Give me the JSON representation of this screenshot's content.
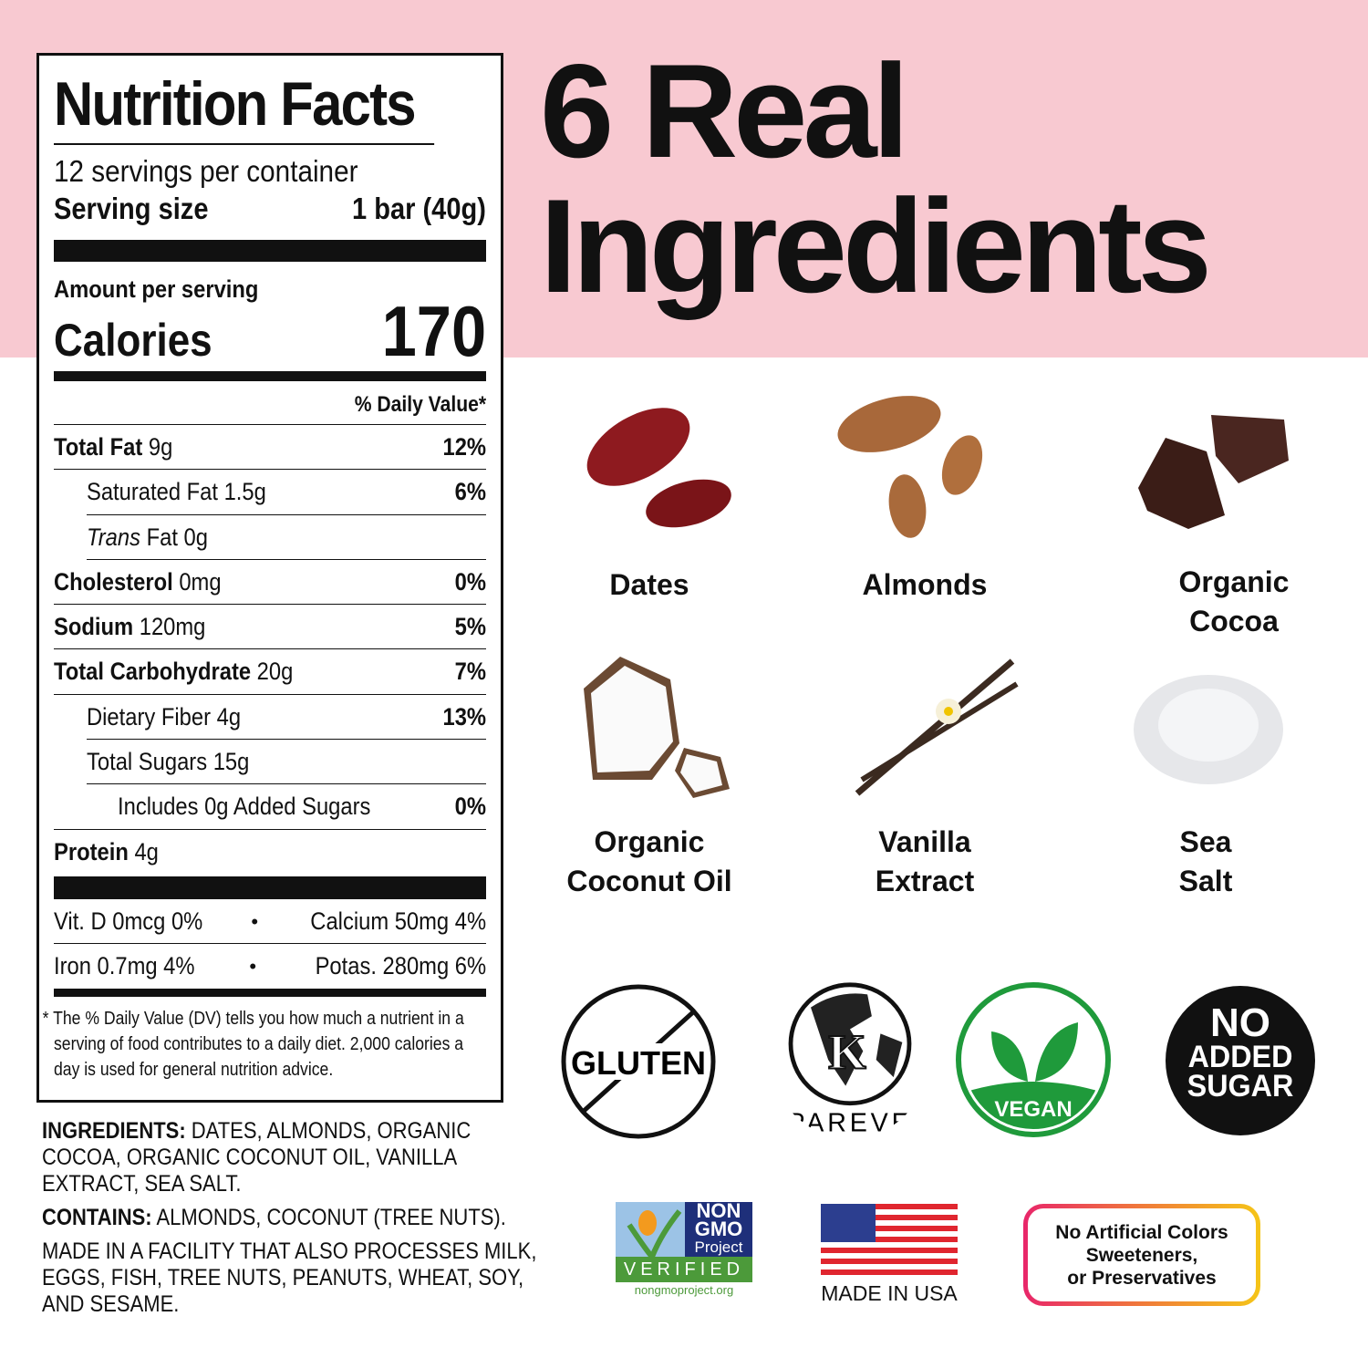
{
  "heading": {
    "line1": "6 Real",
    "line2": "Ingredients"
  },
  "nutrition": {
    "title": "Nutrition Facts",
    "servings": "12 servings per container",
    "serving_size_label": "Serving size",
    "serving_size_value": "1 bar (40g)",
    "amount_per_serving": "Amount per serving",
    "calories_label": "Calories",
    "calories_value": "170",
    "daily_value_header": "% Daily Value*",
    "rows": [
      {
        "name": "Total Fat",
        "amount": "9g",
        "dv": "12%",
        "bold": true,
        "indent": 0
      },
      {
        "name": "Saturated Fat",
        "amount": "1.5g",
        "dv": "6%",
        "indent": 1
      },
      {
        "name": "Trans",
        "name2": "Fat",
        "amount": "0g",
        "dv": "",
        "indent": 1,
        "italic": true
      },
      {
        "name": "Cholesterol",
        "amount": "0mg",
        "dv": "0%",
        "bold": true,
        "indent": 0
      },
      {
        "name": "Sodium",
        "amount": "120mg",
        "dv": "5%",
        "bold": true,
        "indent": 0
      },
      {
        "name": "Total Carbohydrate",
        "amount": "20g",
        "dv": "7%",
        "bold": true,
        "indent": 0
      },
      {
        "name": "Dietary Fiber",
        "amount": "4g",
        "dv": "13%",
        "indent": 1
      },
      {
        "name": "Total Sugars",
        "amount": "15g",
        "dv": "",
        "indent": 1
      },
      {
        "name": "Includes 0g Added Sugars",
        "amount": "",
        "dv": "0%",
        "indent": 2
      },
      {
        "name": "Protein",
        "amount": "4g",
        "dv": "",
        "bold": true,
        "indent": 0
      }
    ],
    "vitamins": [
      {
        "left": "Vit. D 0mcg 0%",
        "right": "Calcium 50mg 4%"
      },
      {
        "left": "Iron 0.7mg 4%",
        "right": "Potas. 280mg 6%"
      }
    ],
    "bullet": "•",
    "footnote": "* The % Daily Value (DV) tells you how much a nutrient in a serving of food contributes to a daily diet. 2,000 calories a day is used for general nutrition advice."
  },
  "ingredients_text": {
    "label": "INGREDIENTS:",
    "value": " DATES, ALMONDS, ORGANIC COCOA, ORGANIC COCONUT OIL, VANILLA EXTRACT, SEA SALT."
  },
  "contains_text": {
    "label": "CONTAINS:",
    "value": " ALMONDS, COCONUT (TREE NUTS)."
  },
  "facility_text": "MADE IN A FACILITY THAT ALSO PROCESSES MILK, EGGS, FISH, TREE NUTS, PEANUTS, WHEAT, SOY, AND SESAME.",
  "ingredients": [
    {
      "line1": "Dates",
      "line2": "",
      "icon": "dates-image"
    },
    {
      "line1": "Almonds",
      "line2": "",
      "icon": "almonds-image"
    },
    {
      "line1": "Organic",
      "line2": "Cocoa",
      "icon": "cocoa-image"
    },
    {
      "line1": "Organic",
      "line2": "Coconut Oil",
      "icon": "coconut-image"
    },
    {
      "line1": "Vanilla",
      "line2": "Extract",
      "icon": "vanilla-image"
    },
    {
      "line1": "Sea",
      "line2": "Salt",
      "icon": "salt-image"
    }
  ],
  "badges": {
    "gluten": "GLUTEN",
    "pareve": "PAREVE",
    "kosher_letter": "K",
    "vegan": "VEGAN",
    "no_added_sugar": [
      "NO",
      "ADDED",
      "SUGAR"
    ],
    "nongmo": {
      "line1": "NON",
      "line2": "GMO",
      "line3": "Project",
      "verified": "VERIFIED",
      "url": "nongmoproject.org"
    },
    "usa": "MADE IN USA",
    "no_artificial": [
      "No Artificial Colors",
      "Sweeteners,",
      "or Preservatives"
    ]
  },
  "colors": {
    "pink": "#f8c9d1",
    "vegan_green": "#1f9a3b",
    "nongmo_blue": "#1e2f7a",
    "nongmo_green": "#4c9a3a",
    "flag_red": "#e0262f",
    "flag_blue": "#2c3e8f"
  }
}
